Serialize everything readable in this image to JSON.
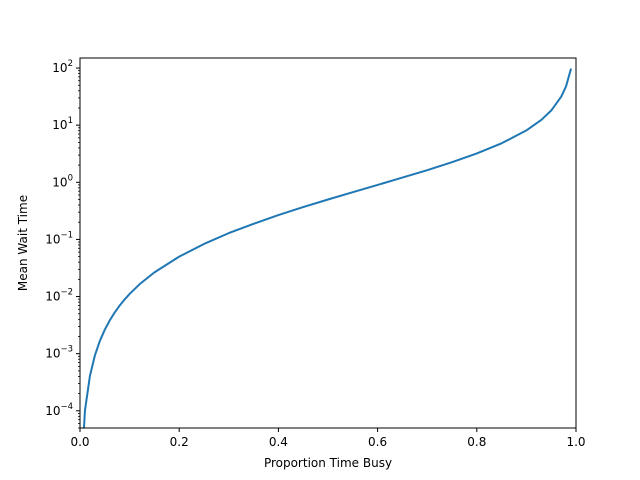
{
  "chart_data": {
    "type": "line",
    "title": "",
    "xlabel": "Proportion Time Busy",
    "ylabel": "Mean Wait Time",
    "xscale": "linear",
    "yscale": "log",
    "xlim": [
      0.0,
      1.0
    ],
    "ylim": [
      5e-05,
      150
    ],
    "grid": false,
    "legend": "none",
    "x_ticks": [
      0.0,
      0.2,
      0.4,
      0.6,
      0.8,
      1.0
    ],
    "x_tick_labels": [
      "0.0",
      "0.2",
      "0.4",
      "0.6",
      "0.8",
      "1.0"
    ],
    "y_ticks": [
      0.0001,
      0.001,
      0.01,
      0.1,
      1,
      10,
      100
    ],
    "y_tick_labels": [
      {
        "base": "10",
        "exp": "−4"
      },
      {
        "base": "10",
        "exp": "−3"
      },
      {
        "base": "10",
        "exp": "−2"
      },
      {
        "base": "10",
        "exp": "−1"
      },
      {
        "base": "10",
        "exp": "0"
      },
      {
        "base": "10",
        "exp": "1"
      },
      {
        "base": "10",
        "exp": "2"
      }
    ],
    "series": [
      {
        "color": "#1f77b4",
        "x": [
          0.01,
          0.02,
          0.03,
          0.04,
          0.05,
          0.06,
          0.07,
          0.08,
          0.09,
          0.1,
          0.12,
          0.15,
          0.2,
          0.25,
          0.3,
          0.35,
          0.4,
          0.45,
          0.5,
          0.55,
          0.6,
          0.65,
          0.7,
          0.75,
          0.8,
          0.85,
          0.9,
          0.93,
          0.95,
          0.97,
          0.98,
          0.99
        ],
        "y": [
          0.000101,
          0.000408,
          0.00093,
          0.00167,
          0.00263,
          0.00383,
          0.00527,
          0.00696,
          0.0089,
          0.0111,
          0.0164,
          0.0265,
          0.05,
          0.0833,
          0.129,
          0.188,
          0.267,
          0.368,
          0.5,
          0.672,
          0.9,
          1.21,
          1.63,
          2.25,
          3.2,
          4.82,
          8.1,
          12.36,
          18.05,
          31.4,
          48.02,
          98.01
        ]
      }
    ]
  }
}
